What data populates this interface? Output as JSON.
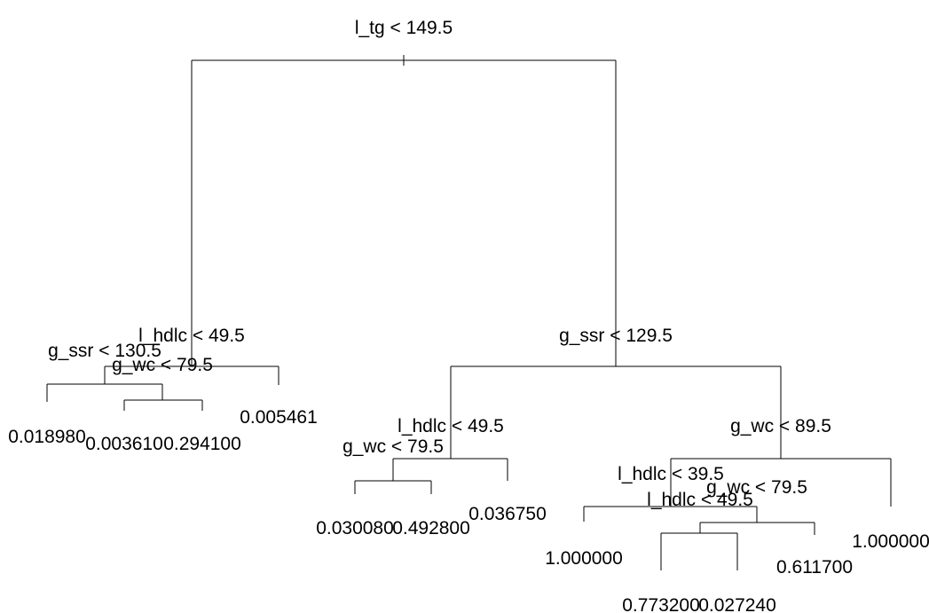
{
  "tree": {
    "splits": [
      {
        "id": "root",
        "label": "l_tg < 149.5"
      },
      {
        "id": "n1",
        "label": "l_hdlc < 49.5"
      },
      {
        "id": "n2",
        "label": "g_ssr < 130.5"
      },
      {
        "id": "n3",
        "label": "g_wc < 79.5"
      },
      {
        "id": "n4",
        "label": "g_ssr < 129.5"
      },
      {
        "id": "n5",
        "label": "l_hdlc < 49.5"
      },
      {
        "id": "n6",
        "label": "g_wc < 79.5"
      },
      {
        "id": "n7",
        "label": "g_wc < 89.5"
      },
      {
        "id": "n8",
        "label": "l_hdlc < 39.5"
      },
      {
        "id": "n9",
        "label": "g_wc < 79.5"
      },
      {
        "id": "n10",
        "label": "l_hdlc < 49.5"
      }
    ],
    "leaves": [
      {
        "id": "L1",
        "value": "0.018980"
      },
      {
        "id": "L2",
        "value": "0.003610"
      },
      {
        "id": "L3",
        "value": "0.294100"
      },
      {
        "id": "L4",
        "value": "0.005461"
      },
      {
        "id": "L5",
        "value": "0.030080"
      },
      {
        "id": "L6",
        "value": "0.492800"
      },
      {
        "id": "L7",
        "value": "0.036750"
      },
      {
        "id": "L8",
        "value": "1.000000"
      },
      {
        "id": "L9",
        "value": "0.773200"
      },
      {
        "id": "L10",
        "value": "0.027240"
      },
      {
        "id": "L11",
        "value": "0.611700"
      },
      {
        "id": "L12",
        "value": "1.000000"
      }
    ]
  }
}
